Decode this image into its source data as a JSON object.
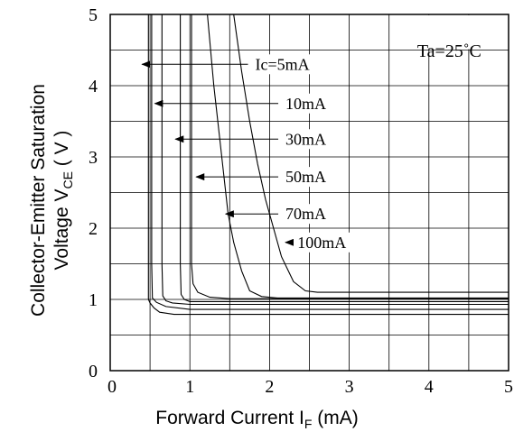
{
  "chart_data": {
    "type": "line",
    "xlabel": {
      "pre": "Forward Current I",
      "sub": "F",
      "post": " (mA)"
    },
    "ylabel": {
      "line1": "Collector-Emitter Saturation",
      "line2_pre": "Voltage V",
      "line2_sub": "CE",
      "line2_post": " ( V )"
    },
    "annotation": "Ta=25˚C",
    "xlim": [
      0,
      5
    ],
    "ylim": [
      0,
      5
    ],
    "xticks": [
      "0",
      "1",
      "2",
      "3",
      "4",
      "5"
    ],
    "yticks": [
      "0",
      "1",
      "2",
      "3",
      "4",
      "5"
    ],
    "grid": true,
    "series": [
      {
        "name": "Ic=5mA",
        "x": [
          0.48,
          0.48,
          0.5,
          0.55,
          0.62,
          0.8,
          5.0
        ],
        "y": [
          5.0,
          1.0,
          0.95,
          0.88,
          0.82,
          0.79,
          0.79
        ],
        "label_x": 1.82,
        "label_y": 4.3,
        "arrow_to": [
          0.4,
          4.3
        ]
      },
      {
        "name": "10mA",
        "x": [
          0.52,
          0.52,
          0.53,
          0.58,
          0.7,
          1.0,
          5.0
        ],
        "y": [
          5.0,
          1.5,
          1.02,
          0.96,
          0.9,
          0.86,
          0.86
        ],
        "label_x": 2.2,
        "label_y": 3.75,
        "arrow_to": [
          0.56,
          3.75
        ]
      },
      {
        "name": "30mA",
        "x": [
          0.65,
          0.65,
          0.66,
          0.7,
          0.78,
          1.0,
          5.0
        ],
        "y": [
          5.0,
          1.5,
          1.05,
          0.98,
          0.95,
          0.93,
          0.93
        ],
        "label_x": 2.2,
        "label_y": 3.25,
        "arrow_to": [
          0.82,
          3.25
        ]
      },
      {
        "name": "50mA",
        "x": [
          0.88,
          0.88,
          0.89,
          0.93,
          1.0,
          1.2,
          5.0
        ],
        "y": [
          5.0,
          1.5,
          1.07,
          1.0,
          0.97,
          0.97,
          0.97
        ],
        "label_x": 2.2,
        "label_y": 2.72,
        "arrow_to": [
          1.08,
          2.72
        ]
      },
      {
        "name": "70mA",
        "x": [
          1.02,
          1.02,
          1.04,
          1.1,
          1.25,
          1.5,
          5.0
        ],
        "y": [
          5.0,
          1.5,
          1.22,
          1.1,
          1.03,
          1.01,
          1.01
        ],
        "label_x": 2.2,
        "label_y": 2.2,
        "arrow_to": [
          1.45,
          2.2
        ]
      },
      {
        "name": "100mA",
        "x": [
          1.22,
          1.3,
          1.4,
          1.48,
          1.55,
          1.65,
          1.75,
          1.9,
          2.1,
          5.0
        ],
        "y": [
          5.0,
          4.0,
          3.0,
          2.2,
          1.8,
          1.4,
          1.12,
          1.04,
          1.02,
          1.02
        ],
        "label_x": 2.35,
        "label_y": 1.8,
        "arrow_to": [
          2.2,
          1.8
        ]
      },
      {
        "name": "",
        "x": [
          1.55,
          1.65,
          1.75,
          1.85,
          1.95,
          2.05,
          2.15,
          2.3,
          2.45,
          2.6,
          5.0
        ],
        "y": [
          5.0,
          4.2,
          3.5,
          2.9,
          2.4,
          2.0,
          1.6,
          1.25,
          1.12,
          1.1,
          1.1
        ]
      }
    ]
  }
}
